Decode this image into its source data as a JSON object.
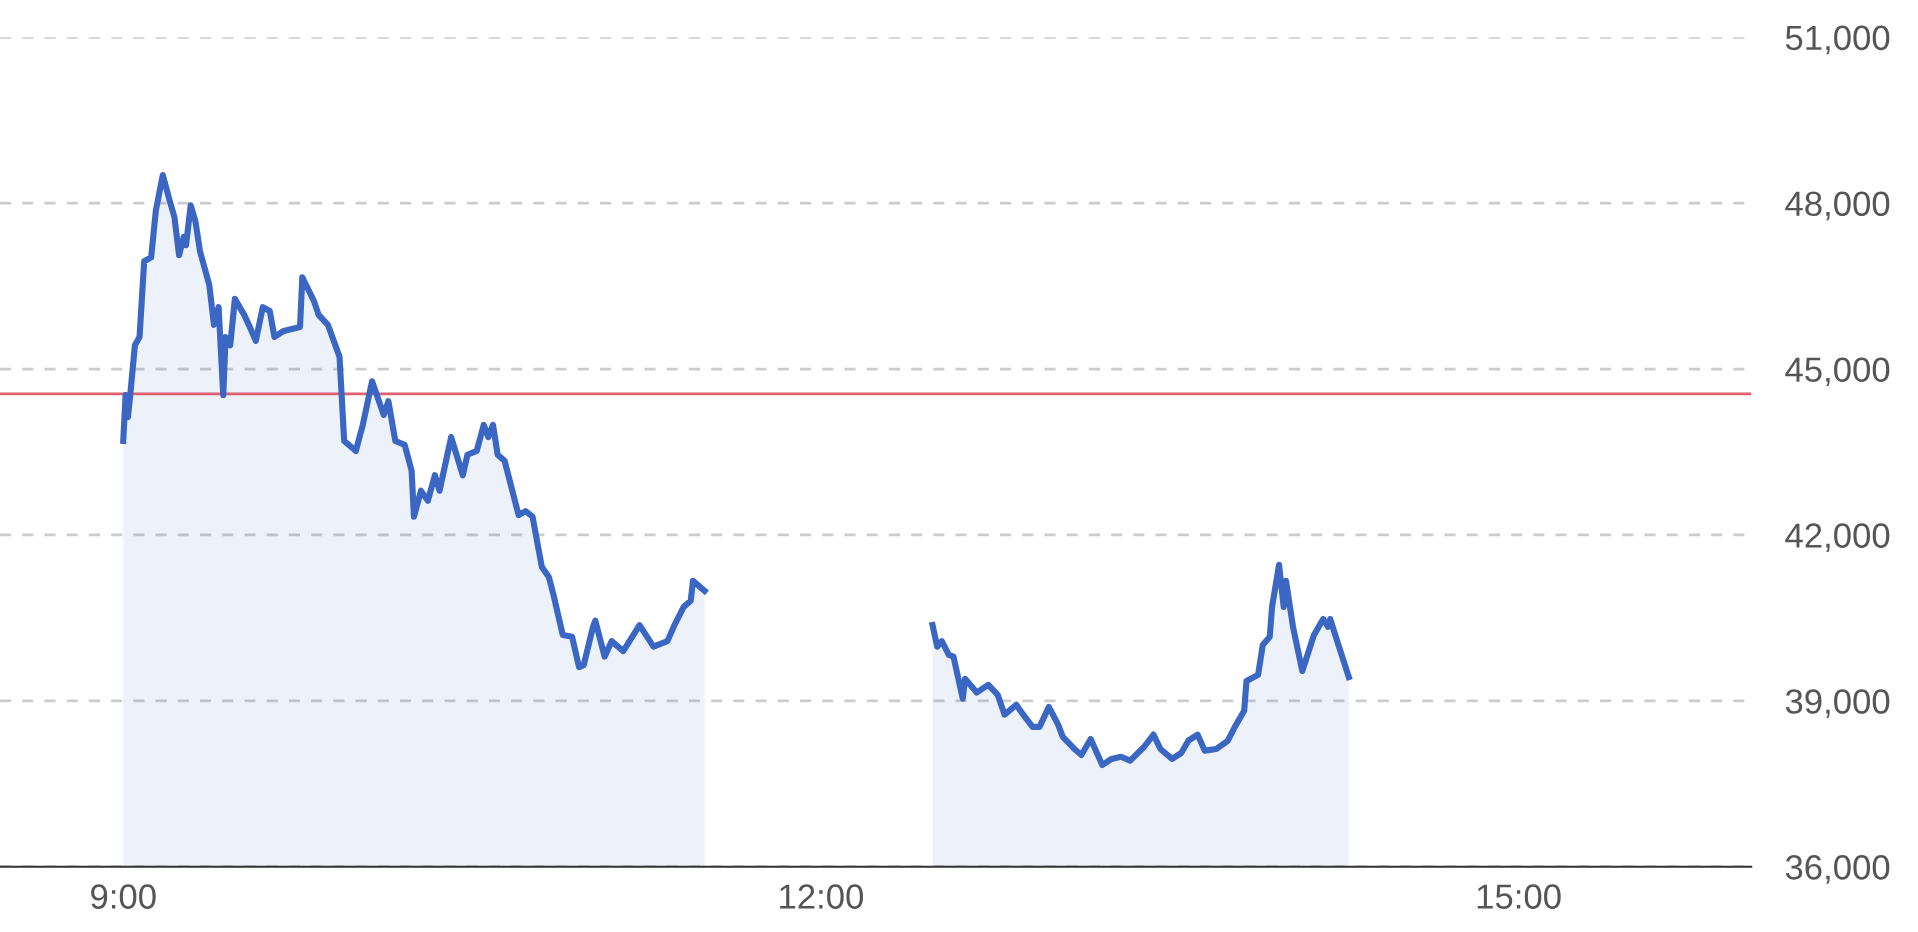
{
  "chart_data": {
    "type": "area",
    "series": [
      {
        "color": "#3a66c4",
        "x": [
          9.0,
          9.01,
          9.02,
          9.03,
          9.05,
          9.07,
          9.09,
          9.12,
          9.14,
          9.17,
          9.2,
          9.22,
          9.24,
          9.26,
          9.27,
          9.29,
          9.31,
          9.33,
          9.37,
          9.39,
          9.41,
          9.43,
          9.44,
          9.46,
          9.48,
          9.52,
          9.54,
          9.57,
          9.6,
          9.63,
          9.65,
          9.69,
          9.76,
          9.77,
          9.82,
          9.84,
          9.88,
          9.93,
          9.95,
          10.0,
          10.03,
          10.07,
          10.12,
          10.14,
          10.17,
          10.21,
          10.24,
          10.25,
          10.28,
          10.31,
          10.34,
          10.36,
          10.41,
          10.46,
          10.48,
          10.52,
          10.55,
          10.57,
          10.59,
          10.61,
          10.64,
          10.7,
          10.73,
          10.76,
          10.8,
          10.83,
          10.85,
          10.89,
          10.93,
          10.96,
          10.98,
          11.02,
          11.03,
          11.07,
          11.1,
          11.15,
          11.22,
          11.28,
          11.34,
          11.37,
          11.41,
          11.44,
          11.45,
          11.5
        ],
        "values": [
          43700,
          44530,
          44130,
          44530,
          45430,
          45580,
          46950,
          47020,
          47860,
          48510,
          48040,
          47750,
          47060,
          47390,
          47240,
          47960,
          47680,
          47130,
          46520,
          45800,
          46120,
          44530,
          45580,
          45430,
          46270,
          45980,
          45800,
          45510,
          46120,
          46050,
          45580,
          45690,
          45760,
          46660,
          46230,
          45980,
          45800,
          45220,
          43700,
          43520,
          43990,
          44780,
          44170,
          44420,
          43700,
          43630,
          43160,
          42330,
          42800,
          42620,
          43080,
          42800,
          43770,
          43080,
          43450,
          43520,
          43990,
          43770,
          43990,
          43450,
          43340,
          42360,
          42430,
          42330,
          41420,
          41240,
          40920,
          40190,
          40160,
          39610,
          39650,
          40340,
          40450,
          39800,
          40080,
          39900,
          40370,
          39980,
          40080,
          40370,
          40700,
          40810,
          41170,
          40990
        ]
      },
      {
        "color": "#3a66c4",
        "x": [
          12.48,
          12.5,
          12.52,
          12.55,
          12.57,
          12.61,
          12.62,
          12.67,
          12.72,
          12.76,
          12.79,
          12.84,
          12.87,
          12.91,
          12.94,
          12.98,
          13.02,
          13.04,
          13.09,
          13.12,
          13.16,
          13.21,
          13.25,
          13.29,
          13.33,
          13.39,
          13.43,
          13.46,
          13.51,
          13.55,
          13.58,
          13.62,
          13.65,
          13.7,
          13.75,
          13.78,
          13.82,
          13.83,
          13.88,
          13.9,
          13.93,
          13.94,
          13.97,
          13.99,
          14.0,
          14.03,
          14.07,
          14.12,
          14.16,
          14.18,
          14.19,
          14.22,
          14.27
        ],
        "values": [
          40370,
          39980,
          40080,
          39830,
          39800,
          39040,
          39400,
          39150,
          39290,
          39110,
          38750,
          38930,
          38750,
          38530,
          38530,
          38890,
          38570,
          38350,
          38130,
          38020,
          38310,
          37840,
          37950,
          37990,
          37920,
          38170,
          38390,
          38130,
          37950,
          38060,
          38280,
          38390,
          38100,
          38130,
          38280,
          38530,
          38820,
          39360,
          39470,
          40010,
          40160,
          40700,
          41460,
          40700,
          41170,
          40340,
          39540,
          40190,
          40480,
          40340,
          40480,
          40080,
          39430
        ]
      }
    ],
    "xlim": [
      8.47,
      16.0
    ],
    "xticks": [
      {
        "value": 9,
        "label": "9:00"
      },
      {
        "value": 12,
        "label": "12:00"
      },
      {
        "value": 15,
        "label": "15:00"
      }
    ],
    "ylim": [
      36000,
      51000
    ],
    "yticks": [
      {
        "value": 36000,
        "label": "36,000"
      },
      {
        "value": 39000,
        "label": "39,000"
      },
      {
        "value": 42000,
        "label": "42,000"
      },
      {
        "value": 45000,
        "label": "45,000"
      },
      {
        "value": 48000,
        "label": "48,000"
      },
      {
        "value": 51000,
        "label": "51,000"
      }
    ],
    "grid": "y",
    "ref_lines": [
      {
        "axis": "y",
        "value": 44550,
        "color": "#e06070"
      }
    ]
  }
}
